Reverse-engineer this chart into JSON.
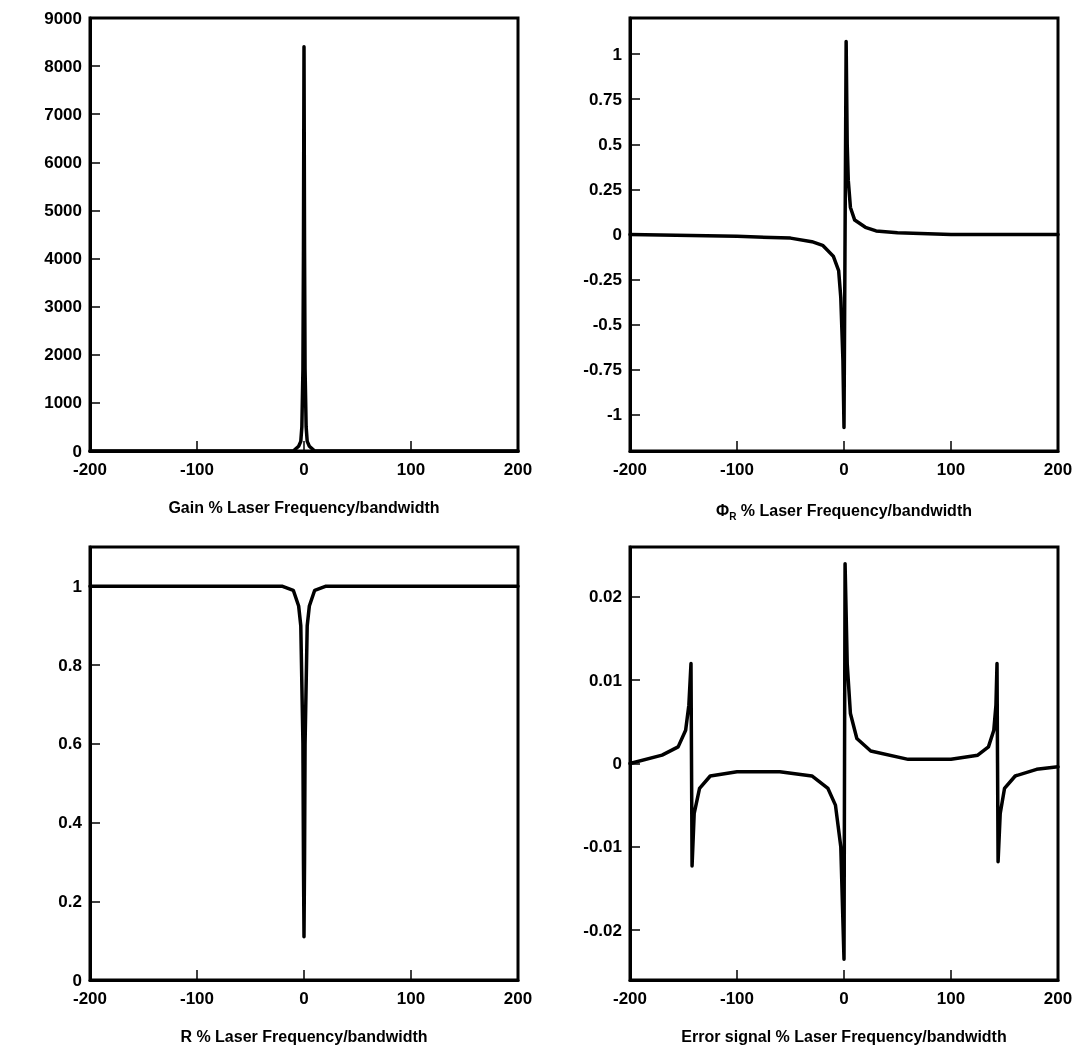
{
  "chart_data": [
    {
      "type": "line",
      "xlabel": "Gain % Laser Frequency/bandwidth",
      "x": [
        -200,
        -100,
        -50,
        -30,
        -20,
        -10,
        -5,
        -3,
        -2,
        -1,
        -0.5,
        0,
        0.5,
        1,
        2,
        3,
        5,
        10,
        20,
        30,
        50,
        100,
        200
      ],
      "series": [
        {
          "color": "#000000",
          "values": [
            0,
            0,
            0,
            0,
            0,
            0,
            100,
            200,
            500,
            1700,
            4200,
            8400,
            4200,
            1700,
            500,
            200,
            100,
            0,
            0,
            0,
            0,
            0,
            0
          ]
        }
      ],
      "xlim": [
        -200,
        200
      ],
      "xticks": [
        -200,
        -100,
        0,
        100,
        200
      ],
      "ylim": [
        0,
        9000
      ],
      "yticks": [
        0,
        1000,
        2000,
        3000,
        4000,
        5000,
        6000,
        7000,
        8000,
        9000
      ],
      "marker": "none",
      "line_style": "solid",
      "grid": false
    },
    {
      "type": "line",
      "xlabel": "Φ$_{R}$ % Laser Frequency/bandwidth",
      "x": [
        -200,
        -100,
        -50,
        -30,
        -20,
        -10,
        -5,
        -3,
        -1,
        0,
        1,
        2,
        3,
        4,
        6,
        10,
        20,
        30,
        50,
        100,
        200
      ],
      "series": [
        {
          "color": "#000000",
          "values": [
            0,
            -0.01,
            -0.02,
            -0.04,
            -0.06,
            -0.12,
            -0.2,
            -0.35,
            -0.7,
            -1.07,
            0,
            1.07,
            0.5,
            0.3,
            0.15,
            0.08,
            0.04,
            0.02,
            0.01,
            0,
            0
          ]
        }
      ],
      "xlim": [
        -200,
        200
      ],
      "xticks": [
        -200,
        -100,
        0,
        100,
        200
      ],
      "ylim": [
        -1.2,
        1.2
      ],
      "yticks": [
        -1,
        -0.75,
        -0.5,
        -0.25,
        0,
        0.25,
        0.5,
        0.75,
        1
      ],
      "marker": "none",
      "line_style": "solid",
      "grid": false
    },
    {
      "type": "line",
      "xlabel": "R % Laser Frequency/bandwidth",
      "x": [
        -200,
        -20,
        -10,
        -5,
        -3,
        -1,
        -0.5,
        0,
        0.5,
        1,
        3,
        5,
        10,
        20,
        200
      ],
      "series": [
        {
          "color": "#000000",
          "values": [
            1,
            1,
            0.99,
            0.95,
            0.9,
            0.6,
            0.3,
            0.11,
            0.3,
            0.6,
            0.9,
            0.95,
            0.99,
            1,
            1
          ]
        }
      ],
      "xlim": [
        -200,
        200
      ],
      "xticks": [
        -200,
        -100,
        0,
        100,
        200
      ],
      "ylim": [
        0,
        1.1
      ],
      "yticks": [
        0,
        0.2,
        0.4,
        0.6,
        0.8,
        1
      ],
      "marker": "none",
      "line_style": "solid",
      "grid": false
    },
    {
      "type": "line",
      "xlabel": "Error signal % Laser Frequency/bandwidth",
      "x": [
        -200,
        -170,
        -155,
        -148,
        -145,
        -143,
        -142,
        -140,
        -135,
        -125,
        -100,
        -60,
        -30,
        -15,
        -8,
        -3,
        0,
        1,
        3,
        6,
        12,
        25,
        60,
        100,
        125,
        135,
        140,
        142,
        143,
        144,
        146,
        150,
        160,
        180,
        200
      ],
      "series": [
        {
          "color": "#000000",
          "values": [
            0,
            0.001,
            0.002,
            0.004,
            0.007,
            0.012,
            -0.0123,
            -0.006,
            -0.003,
            -0.0015,
            -0.001,
            -0.001,
            -0.0015,
            -0.003,
            -0.005,
            -0.01,
            -0.0235,
            0.024,
            0.012,
            0.006,
            0.003,
            0.0015,
            0.0005,
            0.0005,
            0.001,
            0.002,
            0.004,
            0.007,
            0.012,
            -0.0118,
            -0.006,
            -0.003,
            -0.0015,
            -0.0007,
            -0.0004
          ]
        }
      ],
      "xlim": [
        -200,
        200
      ],
      "xticks": [
        -200,
        -100,
        0,
        100,
        200
      ],
      "ylim": [
        -0.026,
        0.026
      ],
      "yticks": [
        -0.02,
        -0.01,
        0,
        0.01,
        0.02
      ],
      "marker": "none",
      "line_style": "solid",
      "grid": false
    }
  ]
}
